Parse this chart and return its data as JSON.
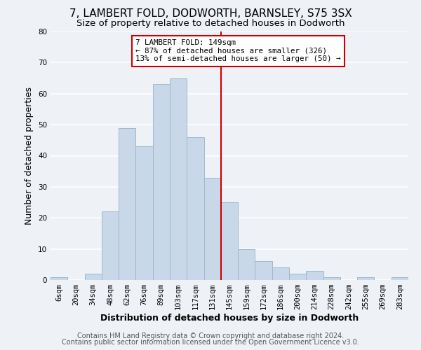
{
  "title": "7, LAMBERT FOLD, DODWORTH, BARNSLEY, S75 3SX",
  "subtitle": "Size of property relative to detached houses in Dodworth",
  "xlabel": "Distribution of detached houses by size in Dodworth",
  "ylabel": "Number of detached properties",
  "categories": [
    "6sqm",
    "20sqm",
    "34sqm",
    "48sqm",
    "62sqm",
    "76sqm",
    "89sqm",
    "103sqm",
    "117sqm",
    "131sqm",
    "145sqm",
    "159sqm",
    "172sqm",
    "186sqm",
    "200sqm",
    "214sqm",
    "228sqm",
    "242sqm",
    "255sqm",
    "269sqm",
    "283sqm"
  ],
  "values": [
    1,
    0,
    2,
    22,
    49,
    43,
    63,
    65,
    46,
    33,
    25,
    10,
    6,
    4,
    2,
    3,
    1,
    0,
    1,
    0,
    1
  ],
  "bar_color": "#c8d8e8",
  "bar_edge_color": "#a0b8cc",
  "highlight_line_color": "#cc0000",
  "annotation_box_text": "7 LAMBERT FOLD: 149sqm\n← 87% of detached houses are smaller (326)\n13% of semi-detached houses are larger (50) →",
  "annotation_box_edge_color": "#cc0000",
  "annotation_box_face_color": "#ffffff",
  "ylim": [
    0,
    80
  ],
  "yticks": [
    0,
    10,
    20,
    30,
    40,
    50,
    60,
    70,
    80
  ],
  "footer_line1": "Contains HM Land Registry data © Crown copyright and database right 2024.",
  "footer_line2": "Contains public sector information licensed under the Open Government Licence v3.0.",
  "background_color": "#eef2f7",
  "grid_color": "#ffffff",
  "title_fontsize": 11,
  "subtitle_fontsize": 9.5,
  "axis_label_fontsize": 9,
  "tick_fontsize": 7.5,
  "annotation_fontsize": 7.8,
  "footer_fontsize": 7
}
